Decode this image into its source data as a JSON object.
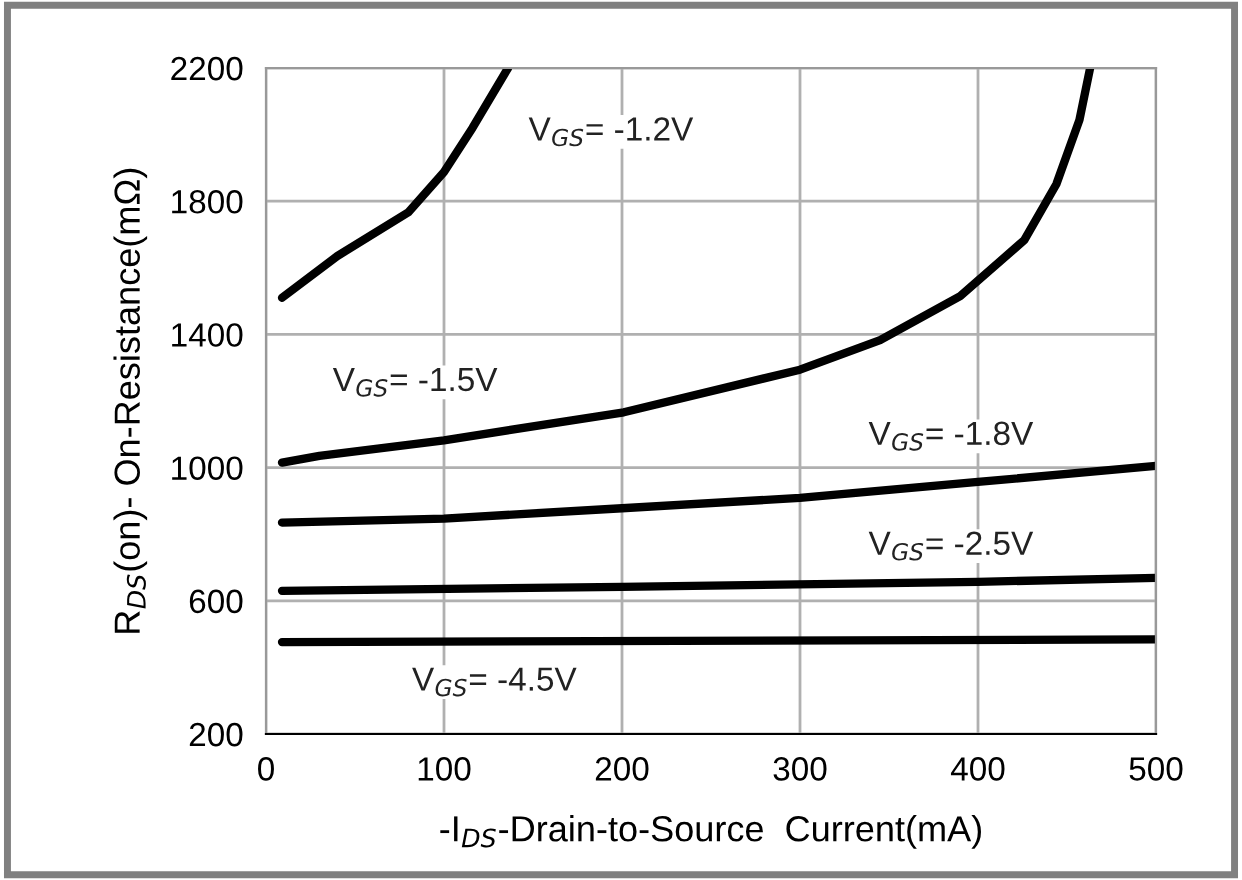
{
  "chart_data": {
    "type": "line",
    "xlabel": "-I$_{DS}$-Drain-to-Source  Current(mA)",
    "ylabel": "R$_{DS}$(on)- On-Resistance(mΩ)",
    "xlim": [
      0,
      500
    ],
    "xticks": [
      0,
      100,
      200,
      300,
      400,
      500
    ],
    "ylim": [
      200,
      2200
    ],
    "yticks": [
      200,
      600,
      1000,
      1400,
      1800,
      2200
    ],
    "grid": true,
    "legend": false,
    "marker": "none",
    "line_style": "solid",
    "series": [
      {
        "name": "V$_{GS}$= -1.2V",
        "color": "#000000",
        "x": [
          9,
          40,
          80,
          100,
          116,
          136
        ],
        "values": [
          1510,
          1635,
          1767,
          1888,
          2020,
          2200
        ]
      },
      {
        "name": "V$_{GS}$= -1.5V",
        "color": "#000000",
        "x": [
          9,
          30,
          100,
          201,
          300,
          345,
          390,
          426,
          444,
          457,
          463
        ],
        "values": [
          1015,
          1035,
          1082,
          1166,
          1294,
          1383,
          1515,
          1683,
          1851,
          2044,
          2200
        ]
      },
      {
        "name": "V$_{GS}$= -1.8V",
        "color": "#000000",
        "x": [
          9,
          100,
          200,
          300,
          400,
          500
        ],
        "values": [
          835,
          847,
          878,
          909,
          957,
          1005
        ]
      },
      {
        "name": "V$_{GS}$= -2.5V",
        "color": "#000000",
        "x": [
          9,
          200,
          400,
          500
        ],
        "values": [
          630,
          642,
          657,
          669
        ]
      },
      {
        "name": "V$_{GS}$= -4.5V",
        "color": "#000000",
        "x": [
          9,
          500
        ],
        "values": [
          476,
          484
        ]
      }
    ]
  }
}
